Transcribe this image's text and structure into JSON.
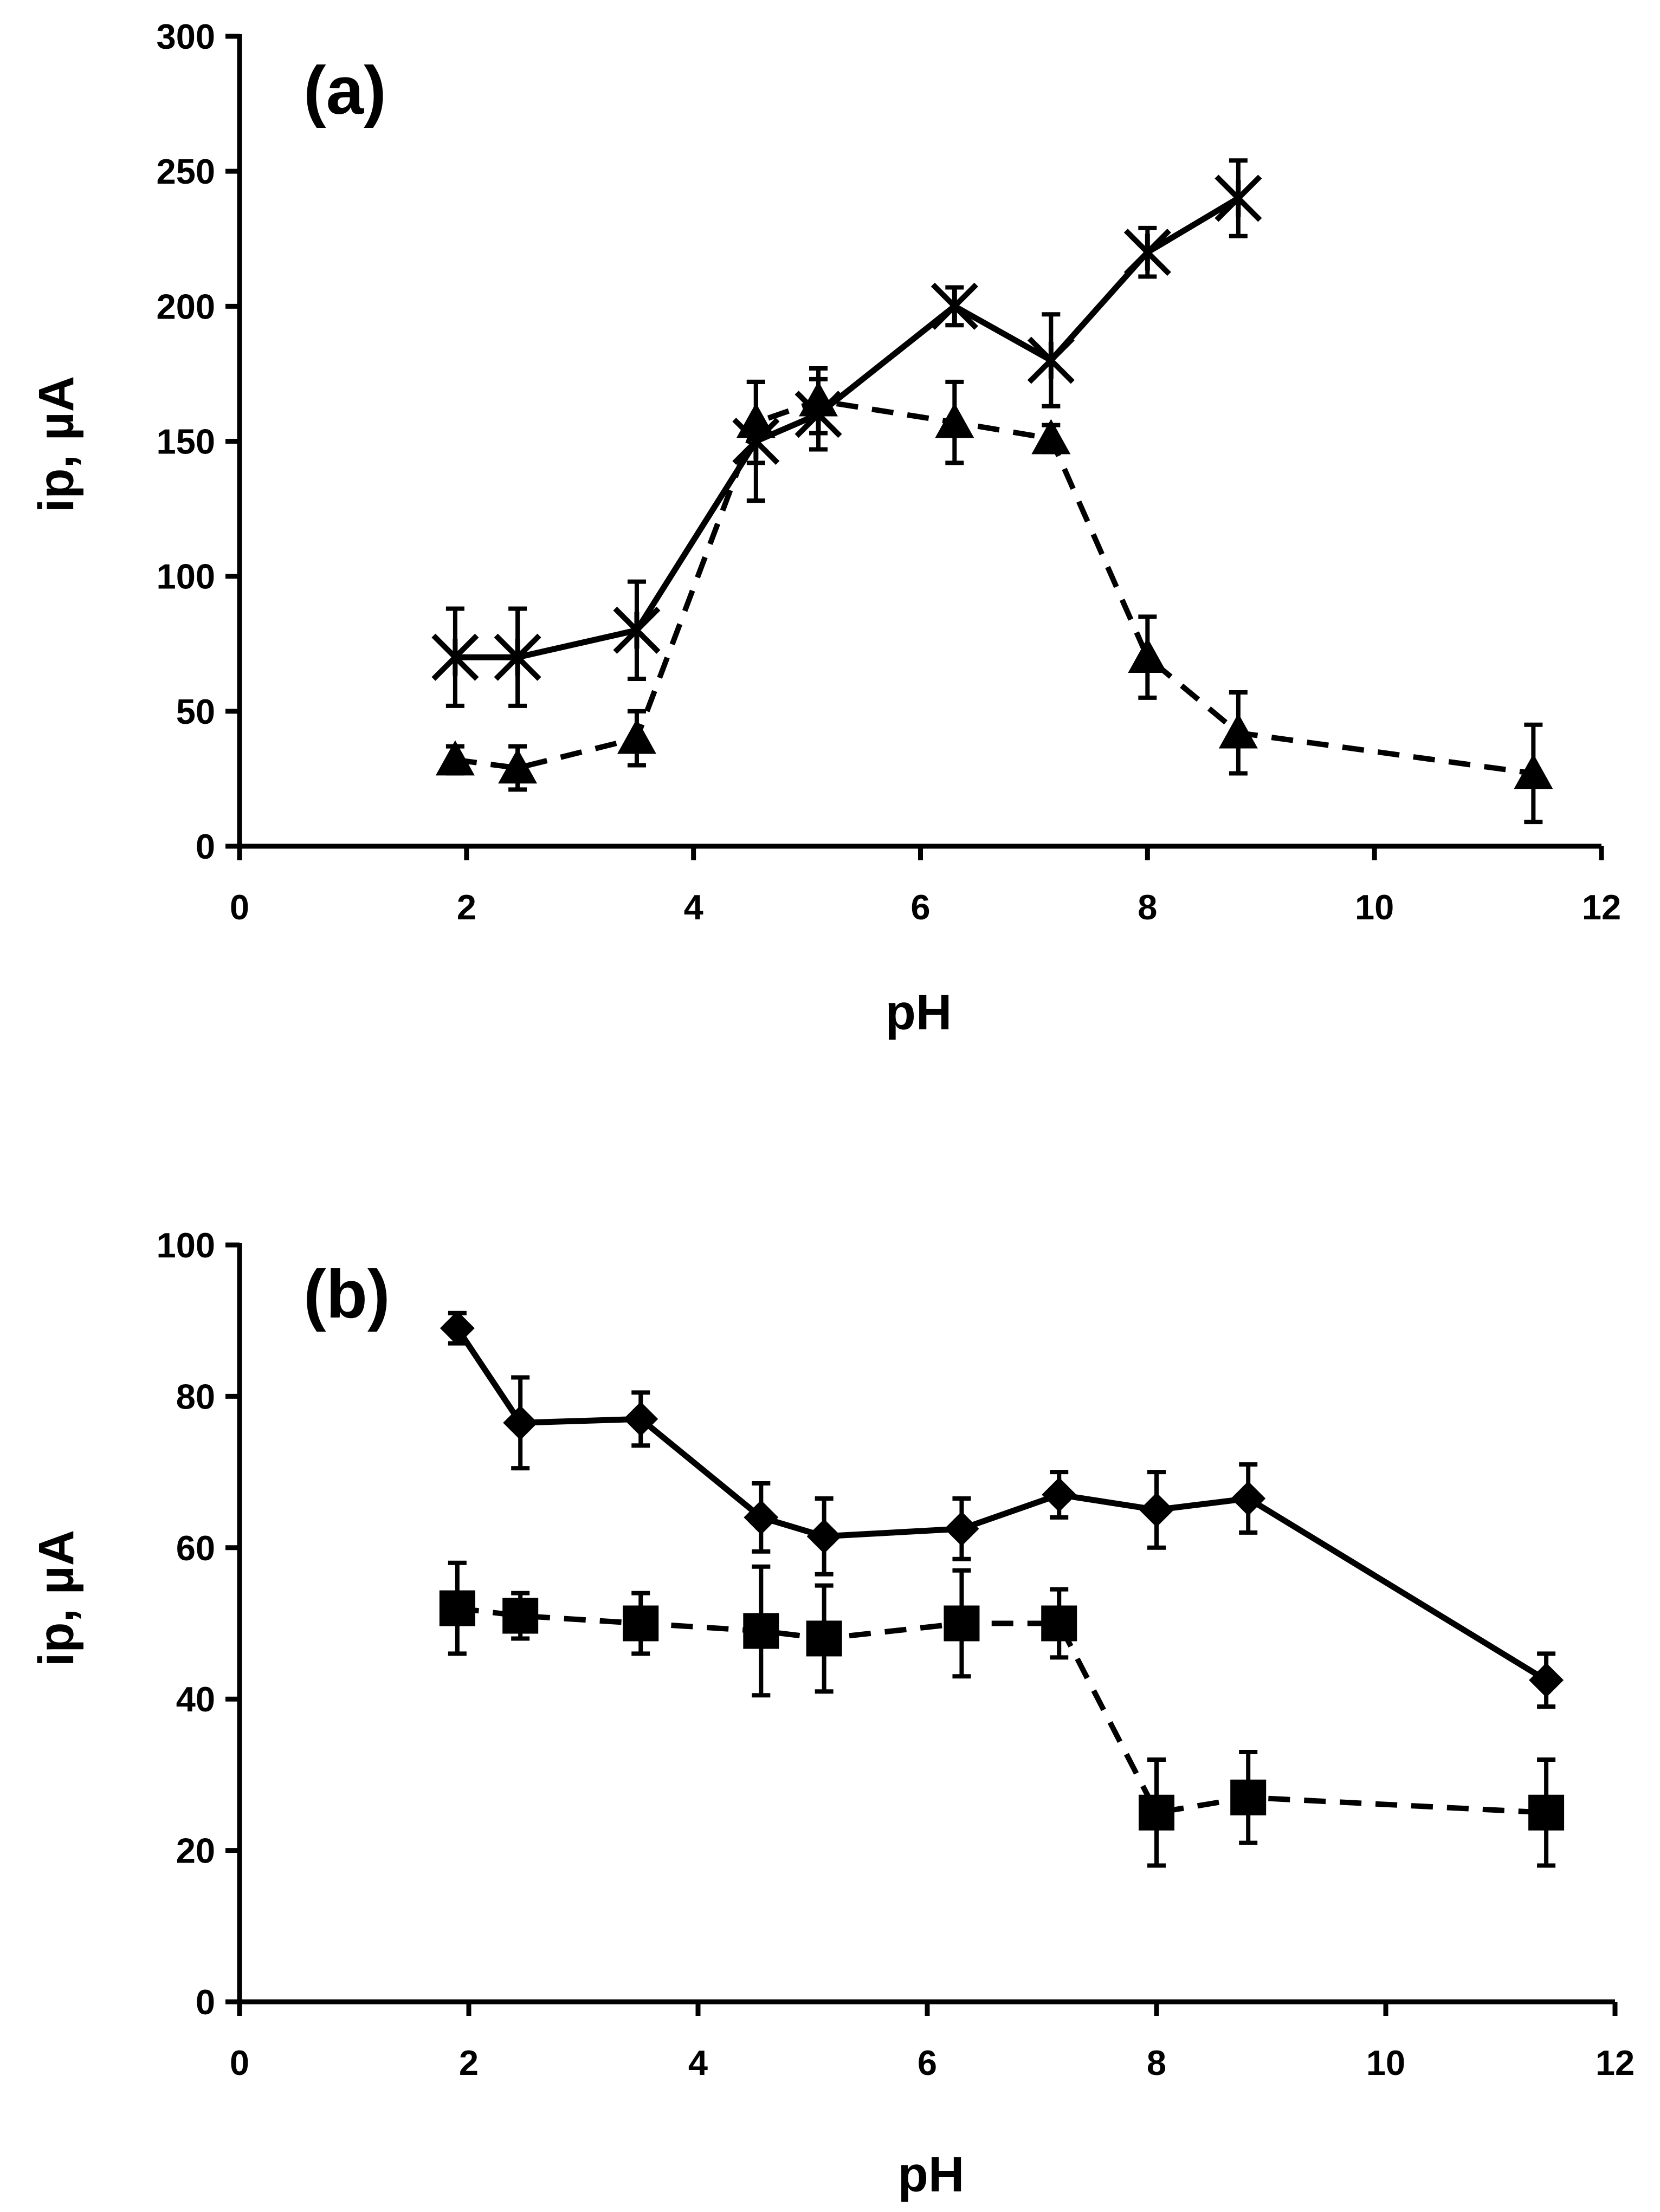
{
  "chart_data": [
    {
      "type": "line",
      "panel_label": "(a)",
      "xlabel": "pH",
      "ylabel": "ip, µA",
      "xlim": [
        0,
        12
      ],
      "ylim": [
        0,
        300
      ],
      "xticks": [
        0,
        2,
        4,
        6,
        8,
        10,
        12
      ],
      "yticks": [
        0,
        50,
        100,
        150,
        200,
        250,
        300
      ],
      "series": [
        {
          "name": "series-a-cross",
          "marker": "asterisk-x",
          "line": "solid",
          "x": [
            1.9,
            2.45,
            3.5,
            4.55,
            5.1,
            6.3,
            7.15,
            8.0,
            8.8
          ],
          "y": [
            70,
            70,
            80,
            150,
            160,
            200,
            180,
            220,
            240
          ],
          "err": [
            18,
            18,
            18,
            22,
            13,
            7,
            17,
            9,
            14
          ]
        },
        {
          "name": "series-a-triangle",
          "marker": "triangle",
          "line": "dashed",
          "x": [
            1.9,
            2.45,
            3.5,
            4.55,
            5.1,
            6.3,
            7.15,
            8.0,
            8.8,
            11.4
          ],
          "y": [
            32,
            29,
            40,
            157,
            165,
            157,
            151,
            70,
            42,
            27
          ],
          "err": [
            5,
            8,
            10,
            15,
            12,
            15,
            5,
            15,
            15,
            18
          ]
        }
      ]
    },
    {
      "type": "line",
      "panel_label": "(b)",
      "xlabel": "pH",
      "ylabel": "ip, µA",
      "xlim": [
        0,
        12
      ],
      "ylim": [
        0,
        100
      ],
      "xticks": [
        0,
        2,
        4,
        6,
        8,
        10,
        12
      ],
      "yticks": [
        0,
        20,
        40,
        60,
        80,
        100
      ],
      "series": [
        {
          "name": "series-b-diamond",
          "marker": "diamond",
          "line": "solid",
          "x": [
            1.9,
            2.45,
            3.5,
            4.55,
            5.1,
            6.3,
            7.15,
            8.0,
            8.8,
            11.4
          ],
          "y": [
            89,
            76.5,
            77,
            64,
            61.5,
            62.5,
            67,
            65,
            66.5,
            42.5
          ],
          "err": [
            2,
            6,
            3.5,
            4.5,
            5,
            4,
            3,
            5,
            4.5,
            3.5
          ]
        },
        {
          "name": "series-b-square",
          "marker": "square",
          "line": "dashed",
          "x": [
            1.9,
            2.45,
            3.5,
            4.55,
            5.1,
            6.3,
            7.15,
            8.0,
            8.8,
            11.4
          ],
          "y": [
            52,
            51,
            50,
            49,
            48,
            50,
            50,
            25,
            27,
            25
          ],
          "err": [
            6,
            3,
            4,
            8.5,
            7,
            7,
            4.5,
            7,
            6,
            7
          ]
        }
      ]
    }
  ]
}
